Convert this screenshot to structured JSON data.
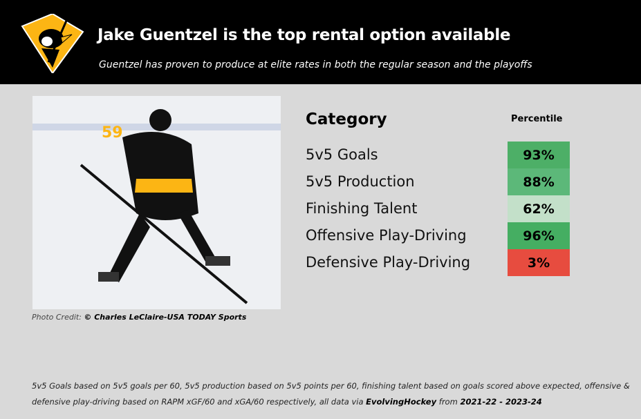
{
  "header": {
    "title": "Jake Guentzel is the top rental option available",
    "subtitle": "Guentzel has proven to produce at elite rates in both the regular season and the playoffs",
    "logo": "pittsburgh-penguins-logo"
  },
  "photo": {
    "credit_label": "Photo Credit: ",
    "credit_name": "© Charles LeClaire-USA TODAY Sports",
    "jersey_number": "59"
  },
  "table": {
    "category_header": "Category",
    "percentile_header": "Percentile",
    "rows": [
      {
        "category": "5v5 Goals",
        "percentile": "93%",
        "color": "#4daf67"
      },
      {
        "category": "5v5 Production",
        "percentile": "88%",
        "color": "#5cb879"
      },
      {
        "category": "Finishing Talent",
        "percentile": "62%",
        "color": "#c3e0c9"
      },
      {
        "category": "Offensive Play-Driving",
        "percentile": "96%",
        "color": "#45ae62"
      },
      {
        "category": "Defensive Play-Driving",
        "percentile": "3%",
        "color": "#e74c3f"
      }
    ]
  },
  "footnote": {
    "text1": "5v5 Goals based on 5v5 goals per 60, 5v5 production based on 5v5 points per 60, finishing talent based on goals scored above expected, offensive & defensive play-driving based on RAPM xGF/60 and xGA/60 respectively, all data via ",
    "source": "EvolvingHockey",
    "text2": " from ",
    "range": "2021-22 - 2023-24"
  }
}
